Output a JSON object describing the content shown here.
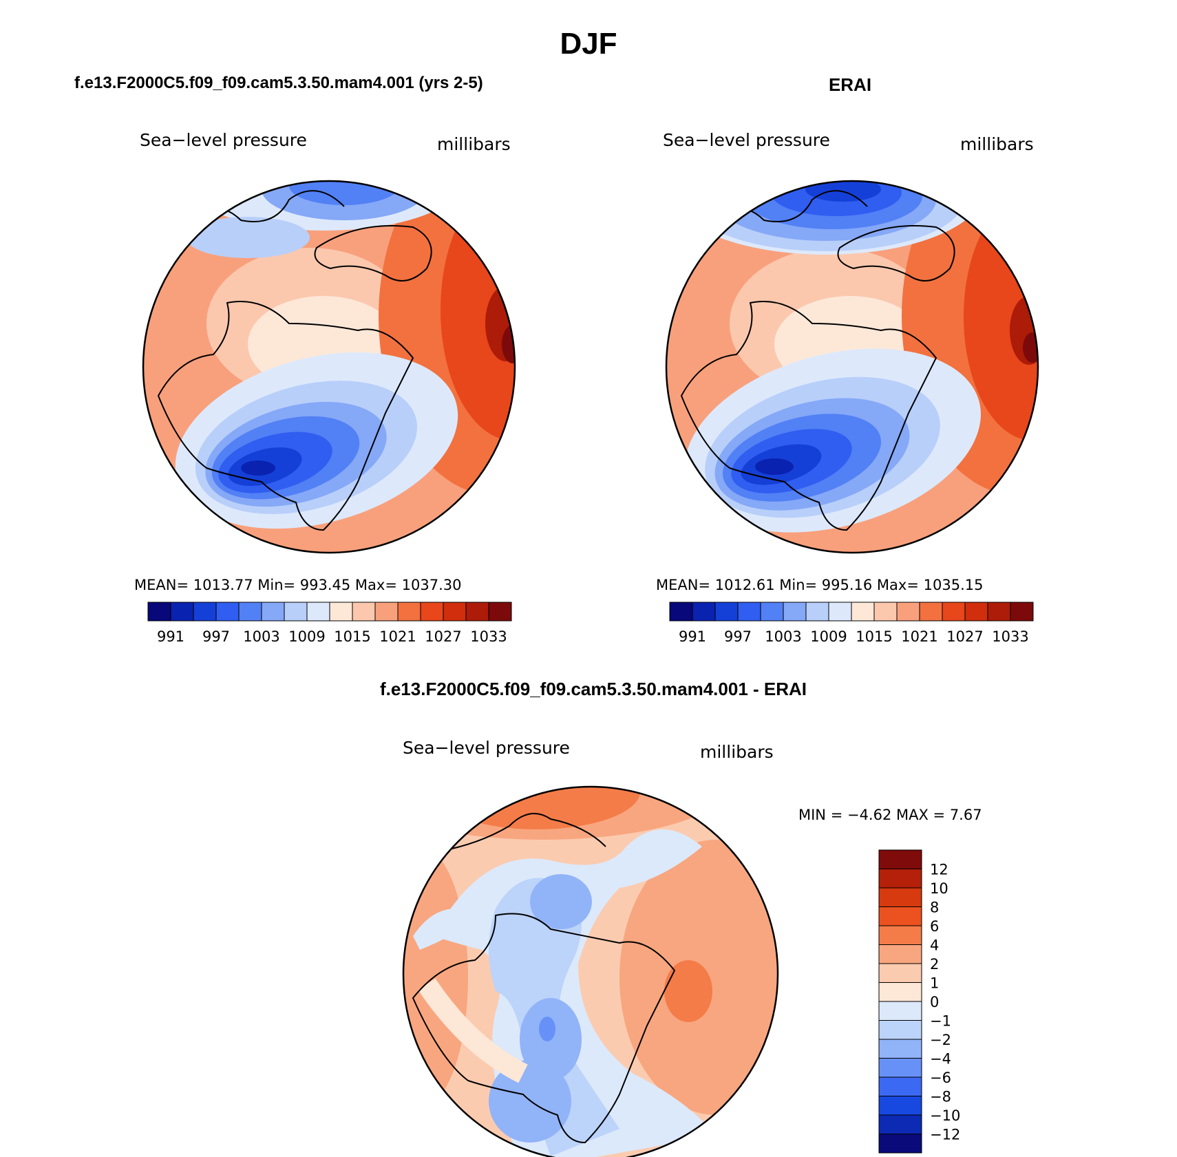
{
  "page": {
    "title": "DJF"
  },
  "palettes": {
    "absolute": [
      "#08087a",
      "#0a22b0",
      "#1540d8",
      "#2f5ef0",
      "#5280f5",
      "#85a8f7",
      "#b8cffa",
      "#dde9fb",
      "#fde8d8",
      "#fbc8ae",
      "#f8a07c",
      "#f2713f",
      "#e8461b",
      "#d02e0c",
      "#ad1c08",
      "#7d0a0a"
    ],
    "difference": [
      "#0a0a7a",
      "#0d2ab5",
      "#1748e0",
      "#3c69f3",
      "#6791f6",
      "#91b3f8",
      "#bcd3fa",
      "#dce9fb",
      "#fde7d7",
      "#fbcbb0",
      "#f8a67f",
      "#f47c49",
      "#ec521f",
      "#d63a0e",
      "#b4200a",
      "#800b0b"
    ]
  },
  "panels": {
    "model": {
      "title": "f.e13.F2000C5.f09_f09.cam5.3.50.mam4.001 (yrs 2-5)",
      "variable": "Sea−level pressure",
      "units": "millibars",
      "stats": "MEAN=  1013.77    Min=  993.45    Max=  1037.30",
      "legend_ticks": [
        "991",
        "997",
        "1003",
        "1009",
        "1015",
        "1021",
        "1027",
        "1033"
      ]
    },
    "obs": {
      "title": "ERAI",
      "variable": "Sea−level pressure",
      "units": "millibars",
      "stats": "MEAN=  1012.61    Min=  995.16    Max=  1035.15",
      "legend_ticks": [
        "991",
        "997",
        "1003",
        "1009",
        "1015",
        "1021",
        "1027",
        "1033"
      ]
    },
    "diff": {
      "title": "f.e13.F2000C5.f09_f09.cam5.3.50.mam4.001 - ERAI",
      "variable": "Sea−level pressure",
      "units": "millibars",
      "minmax": "MIN =    −4.62  MAX =     7.67",
      "legend_ticks": [
        "12",
        "10",
        "8",
        "6",
        "4",
        "2",
        "1",
        "0",
        "−1",
        "−2",
        "−4",
        "−6",
        "−8",
        "−10",
        "−12"
      ]
    }
  }
}
